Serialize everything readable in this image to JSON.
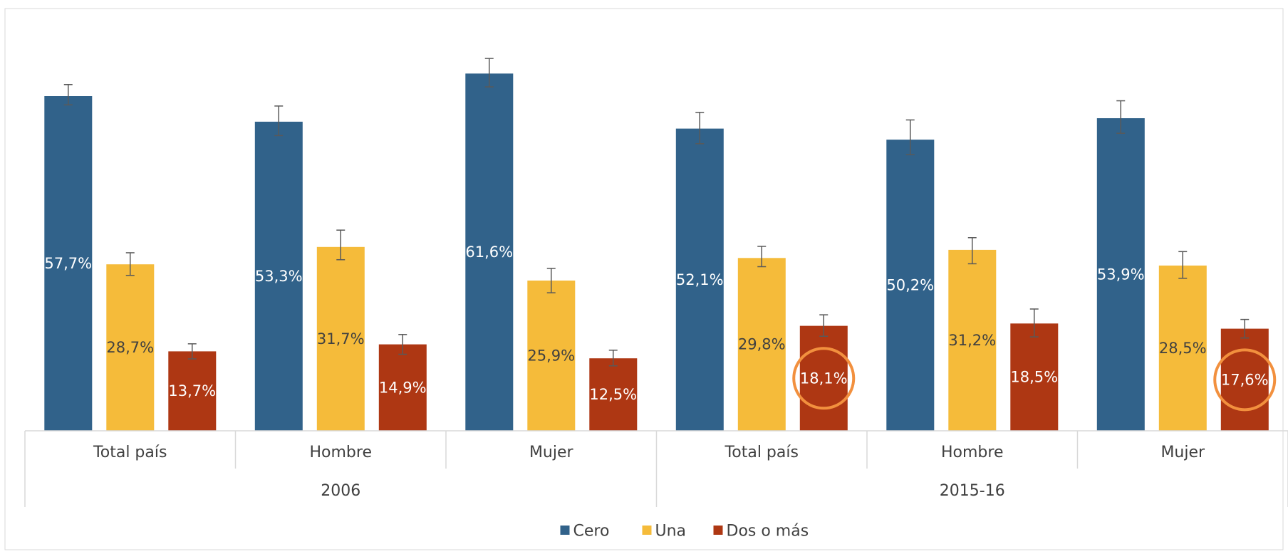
{
  "chart_data": {
    "type": "bar",
    "title": "",
    "xlabel": "",
    "ylabel": "",
    "ylim": [
      0,
      66
    ],
    "grid": false,
    "legend_position": "bottom",
    "groups": [
      {
        "label": "2006",
        "categories": [
          "Total país",
          "Hombre",
          "Mujer"
        ]
      },
      {
        "label": "2015-16",
        "categories": [
          "Total país",
          "Hombre",
          "Mujer"
        ]
      }
    ],
    "series": [
      {
        "name": "Cero",
        "color": "#31628a",
        "label_color": "#ffffff",
        "values": [
          57.7,
          53.3,
          61.6,
          52.1,
          50.2,
          53.9
        ],
        "labels": [
          "57,7%",
          "53,3%",
          "61,6%",
          "52,1%",
          "50,2%",
          "53,9%"
        ],
        "error": [
          [
            56.2,
            59.7
          ],
          [
            50.9,
            56.0
          ],
          [
            59.3,
            64.2
          ],
          [
            49.5,
            54.9
          ],
          [
            47.6,
            53.6
          ],
          [
            51.3,
            56.9
          ]
        ]
      },
      {
        "name": "Una",
        "color": "#f5bb3a",
        "label_color": "#404040",
        "values": [
          28.7,
          31.7,
          25.9,
          29.8,
          31.2,
          28.5
        ],
        "labels": [
          "28,7%",
          "31,7%",
          "25,9%",
          "29,8%",
          "31,2%",
          "28,5%"
        ],
        "error": [
          [
            26.8,
            30.7
          ],
          [
            29.5,
            34.6
          ],
          [
            23.8,
            28.0
          ],
          [
            28.3,
            31.8
          ],
          [
            28.8,
            33.3
          ],
          [
            26.3,
            30.9
          ]
        ]
      },
      {
        "name": "Dos o más",
        "color": "#ae3713",
        "label_color": "#ffffff",
        "values": [
          13.7,
          14.9,
          12.5,
          18.1,
          18.5,
          17.6
        ],
        "labels": [
          "13,7%",
          "14,9%",
          "12,5%",
          "18,1%",
          "18,5%",
          "17,6%"
        ],
        "error": [
          [
            12.4,
            15.0
          ],
          [
            13.2,
            16.6
          ],
          [
            11.2,
            13.9
          ],
          [
            16.3,
            20.0
          ],
          [
            16.2,
            21.0
          ],
          [
            16.0,
            19.2
          ]
        ]
      }
    ],
    "highlights": [
      {
        "series": 2,
        "index": 3,
        "color": "#f2903e"
      },
      {
        "series": 2,
        "index": 5,
        "color": "#f2903e"
      }
    ]
  }
}
